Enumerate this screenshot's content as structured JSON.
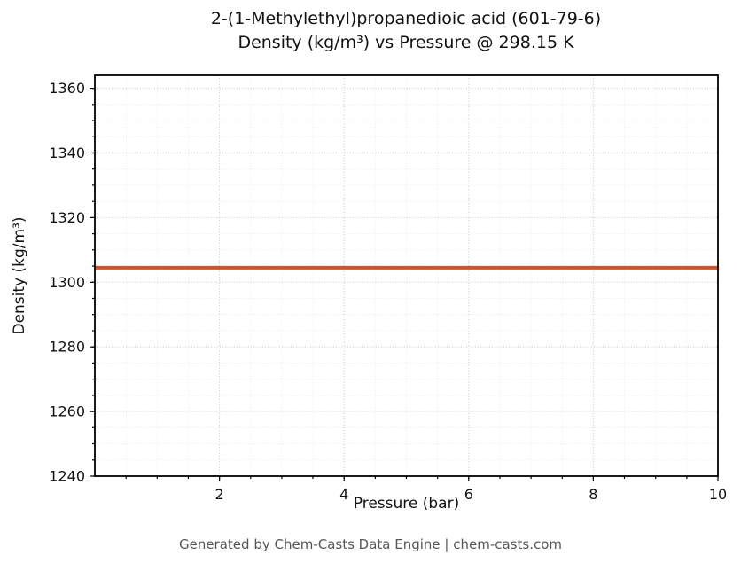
{
  "chart_data": {
    "type": "line",
    "title_line1": "2-(1-Methylethyl)propanedioic acid (601-79-6)",
    "title_line2": "Density (kg/m³) vs Pressure @ 298.15 K",
    "xlabel": "Pressure (bar)",
    "ylabel": "Density (kg/m³)",
    "xlim": [
      0,
      10
    ],
    "ylim": [
      1240,
      1364
    ],
    "xticks": [
      2,
      4,
      6,
      8,
      10
    ],
    "yticks": [
      1240,
      1260,
      1280,
      1300,
      1320,
      1340,
      1360
    ],
    "minor_xtick_step": 0.5,
    "minor_ytick_step": 5,
    "grid": true,
    "grid_style": "dotted",
    "legend": "none",
    "colors": {
      "line": "#d0532b",
      "major_grid": "#c9c9c9",
      "minor_grid": "#e4e4e4",
      "axis": "#000000",
      "footer_text": "#565656"
    },
    "series": [
      {
        "name": "density",
        "color": "#d0532b",
        "linewidth": 4,
        "x": [
          0,
          10
        ],
        "y": [
          1304.5,
          1304.5
        ]
      }
    ],
    "footer": "Generated by Chem-Casts Data Engine | chem-casts.com"
  }
}
